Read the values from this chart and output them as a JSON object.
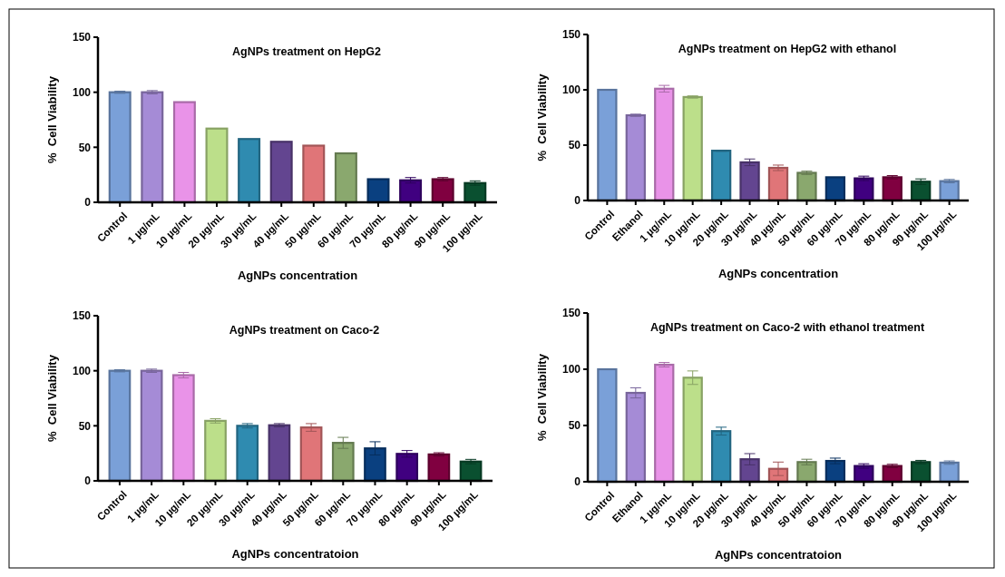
{
  "chart_data": [
    {
      "type": "bar",
      "title": "AgNPs treatment on HepG2",
      "xlabel": "AgNPs concentration",
      "ylabel": "%  Cell Viability",
      "categories": [
        "Control",
        "1 µg/mL",
        "10 µg/mL",
        "20 µg/mL",
        "30 µg/mL",
        "40 µg/mL",
        "50 µg/mL",
        "60 µg/mL",
        "70 µg/mL",
        "80 µg/mL",
        "90 µg/mL",
        "100 µg/mL"
      ],
      "values": [
        100,
        100,
        91,
        67,
        57.5,
        55,
        51.5,
        44.5,
        21,
        20,
        21,
        17.5
      ],
      "errors": [
        1,
        1.5,
        null,
        null,
        null,
        null,
        null,
        null,
        null,
        2.5,
        1.5,
        2
      ],
      "colors": [
        "#7aa0d8",
        "#a58bd6",
        "#e993e8",
        "#bcdf8a",
        "#2f8bb0",
        "#634590",
        "#e07578",
        "#8aa86e",
        "#0a4080",
        "#400080",
        "#800040",
        "#0a5030"
      ],
      "ylim": [
        0,
        150
      ],
      "yticks": [
        0,
        50,
        100,
        150
      ]
    },
    {
      "type": "bar",
      "title": "AgNPs treatment on HepG2 with ethanol",
      "xlabel": "AgNPs concentration",
      "ylabel": "%  Cell Viability",
      "categories": [
        "Control",
        "Ethanol",
        "1 µg/mL",
        "10 µg/mL",
        "20 µg/mL",
        "30 µg/mL",
        "40 µg/mL",
        "50 µg/mL",
        "60 µg/mL",
        "70 µg/mL",
        "80 µg/mL",
        "90 µg/mL",
        "100 µg/mL"
      ],
      "values": [
        100,
        77,
        101,
        93.5,
        45,
        34.5,
        29.5,
        25,
        21,
        20,
        21,
        17,
        17.5
      ],
      "errors": [
        null,
        1,
        3,
        1,
        0.5,
        3,
        2.5,
        1.5,
        null,
        2,
        1.5,
        2.5,
        1.5
      ],
      "colors": [
        "#7aa0d8",
        "#a58bd6",
        "#e993e8",
        "#bcdf8a",
        "#2f8bb0",
        "#634590",
        "#e07578",
        "#8aa86e",
        "#0a4080",
        "#400080",
        "#800040",
        "#0a5030",
        "#7aa0d8"
      ],
      "ylim": [
        0,
        150
      ],
      "yticks": [
        0,
        50,
        100,
        150
      ]
    },
    {
      "type": "bar",
      "title": "AgNPs treatment on Caco-2",
      "xlabel": "AgNPs concentratoion",
      "ylabel": "%  Cell Viability",
      "categories": [
        "Control",
        "1 µg/mL",
        "10 µg/mL",
        "20 µg/mL",
        "30 µg/mL",
        "40 µg/mL",
        "50 µg/mL",
        "60 µg/mL",
        "70 µg/mL",
        "80 µg/mL",
        "90 µg/mL",
        "100 µg/mL"
      ],
      "values": [
        100,
        100,
        96,
        54.5,
        50,
        50.5,
        48.5,
        34.5,
        29.5,
        24.5,
        24,
        17.5
      ],
      "errors": [
        1,
        1.5,
        2.5,
        2,
        2,
        1.5,
        3.5,
        5,
        6,
        3,
        1.5,
        2
      ],
      "colors": [
        "#7aa0d8",
        "#a58bd6",
        "#e993e8",
        "#bcdf8a",
        "#2f8bb0",
        "#634590",
        "#e07578",
        "#8aa86e",
        "#0a4080",
        "#400080",
        "#800040",
        "#0a5030"
      ],
      "ylim": [
        0,
        150
      ],
      "yticks": [
        0,
        50,
        100,
        150
      ]
    },
    {
      "type": "bar",
      "title": "AgNPs treatment on Caco-2  with ethanol treatment",
      "xlabel": "AgNPs concentratoion",
      "ylabel": "%  Cell Viability",
      "categories": [
        "Control",
        "Ethanol",
        "1 µg/mL",
        "10 µg/mL",
        "20 µg/mL",
        "30 µg/mL",
        "40 µg/mL",
        "50 µg/mL",
        "60 µg/mL",
        "70 µg/mL",
        "80 µg/mL",
        "90 µg/mL",
        "100 µg/mL"
      ],
      "values": [
        100,
        79,
        104,
        92.5,
        45,
        20,
        11.5,
        17.5,
        18.5,
        14,
        14,
        17.5,
        17
      ],
      "errors": [
        null,
        4.5,
        2,
        6,
        3.5,
        5,
        6,
        2.5,
        2.5,
        2,
        1.5,
        1.5,
        1.5
      ],
      "colors": [
        "#7aa0d8",
        "#a58bd6",
        "#e993e8",
        "#bcdf8a",
        "#2f8bb0",
        "#634590",
        "#e07578",
        "#8aa86e",
        "#0a4080",
        "#400080",
        "#800040",
        "#0a5030",
        "#7aa0d8"
      ],
      "ylim": [
        0,
        150
      ],
      "yticks": [
        0,
        50,
        100,
        150
      ]
    }
  ]
}
